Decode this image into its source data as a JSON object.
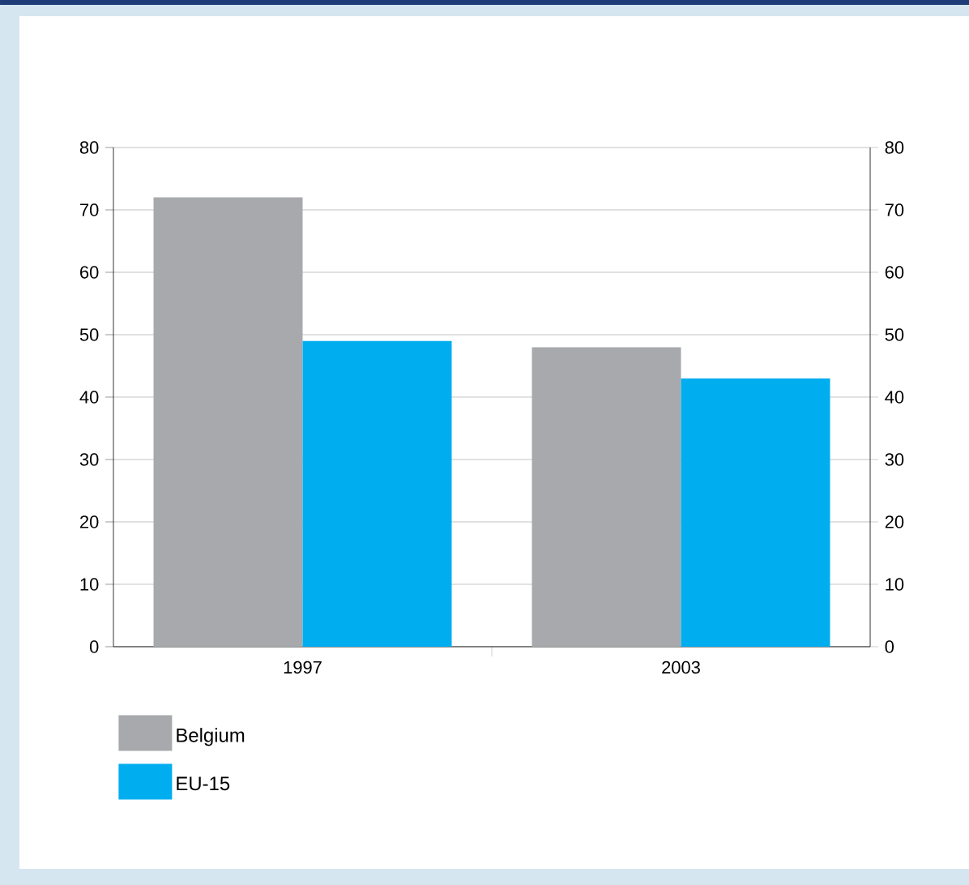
{
  "chart_data": {
    "type": "bar",
    "categories": [
      "1997",
      "2003"
    ],
    "series": [
      {
        "name": "Belgium",
        "color": "#a7a9ac",
        "values": [
          72,
          48
        ]
      },
      {
        "name": "EU-15",
        "color": "#00aeef",
        "values": [
          49,
          43
        ]
      }
    ],
    "ylim": [
      0,
      80
    ],
    "yticks": [
      0,
      10,
      20,
      30,
      40,
      50,
      60,
      70,
      80
    ],
    "y2lim": [
      0,
      80
    ],
    "y2ticks": [
      0,
      10,
      20,
      30,
      40,
      50,
      60,
      70,
      80
    ],
    "grid": "y",
    "legend": "bottom left"
  }
}
